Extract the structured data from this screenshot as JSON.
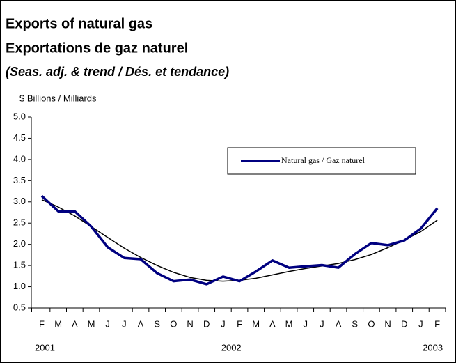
{
  "chart_data": {
    "type": "line",
    "title": "Exports of natural gas",
    "subtitle": "Exportations de gaz naturel",
    "note": "(Seas. adj. & trend / Dés. et tendance)",
    "y_axis_label": "$ Billions / Milliards",
    "categories": [
      "F",
      "M",
      "A",
      "M",
      "J",
      "J",
      "A",
      "S",
      "O",
      "N",
      "D",
      "J",
      "F",
      "M",
      "A",
      "M",
      "J",
      "J",
      "A",
      "S",
      "O",
      "N",
      "D",
      "J",
      "F"
    ],
    "years": [
      "2001",
      "2002",
      "2003"
    ],
    "series": [
      {
        "name": "Natural gas / Gaz naturel",
        "color": "#000080",
        "values": [
          3.14,
          2.78,
          2.78,
          2.42,
          1.93,
          1.68,
          1.65,
          1.32,
          1.13,
          1.17,
          1.06,
          1.24,
          1.13,
          1.36,
          1.62,
          1.45,
          1.48,
          1.51,
          1.45,
          1.77,
          2.03,
          1.98,
          2.09,
          2.37,
          2.85
        ]
      },
      {
        "color": "#000000",
        "values": [
          3.05,
          2.88,
          2.67,
          2.42,
          2.16,
          1.91,
          1.69,
          1.5,
          1.34,
          1.22,
          1.15,
          1.13,
          1.15,
          1.2,
          1.28,
          1.36,
          1.43,
          1.49,
          1.55,
          1.64,
          1.76,
          1.92,
          2.1,
          2.3,
          2.57
        ]
      }
    ],
    "ylim": [
      0.5,
      5.0
    ],
    "yticks": [
      0.5,
      {
        "value": 1.0,
        "label": "1.0"
      },
      1.5,
      {
        "value": 2.0,
        "label": "2.0"
      },
      2.5,
      {
        "value": 3.0,
        "label": "3.0"
      },
      3.5,
      {
        "value": 4.0,
        "label": "4.0"
      },
      4.5,
      {
        "value": 5.0,
        "label": "5.0"
      }
    ],
    "grid": false,
    "legend": "upper right"
  }
}
